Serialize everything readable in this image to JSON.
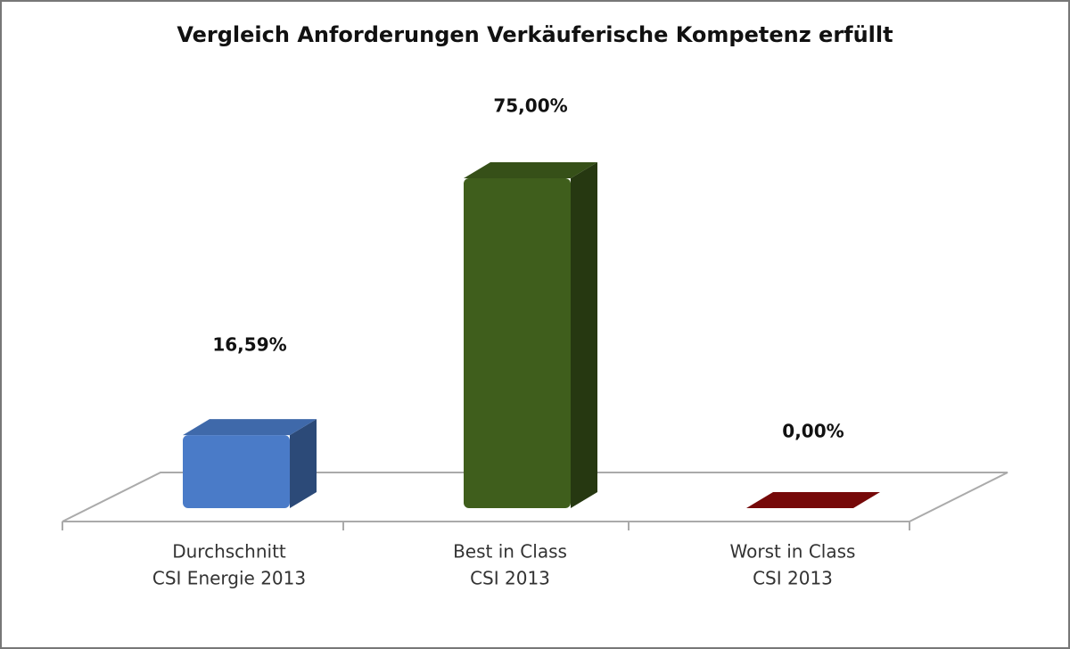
{
  "chart_data": {
    "type": "bar3d",
    "title": "Vergleich Anforderungen Verkäuferische Kompetenz erfüllt",
    "categories": [
      [
        "Durchschnitt",
        "CSI Energie 2013"
      ],
      [
        "Best in Class",
        "CSI 2013"
      ],
      [
        "Worst in Class",
        "CSI 2013"
      ]
    ],
    "values": [
      16.59,
      75,
      0
    ],
    "value_labels": [
      "16,59%",
      "75,00%",
      "0,00%"
    ],
    "colors": [
      "#4a7bc8",
      "#3f5e1c",
      "#8b0a0a"
    ]
  }
}
